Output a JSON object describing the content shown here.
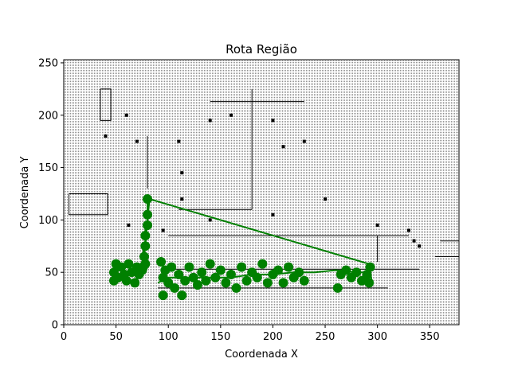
{
  "chart_data": {
    "type": "scatter",
    "title": "Rota Região",
    "xlabel": "Coordenada X",
    "ylabel": "Coordenada Y",
    "xlim": [
      0,
      378
    ],
    "ylim": [
      0,
      253
    ],
    "x_ticks": [
      0,
      50,
      100,
      150,
      200,
      250,
      300,
      350
    ],
    "y_ticks": [
      0,
      50,
      100,
      150,
      200,
      250
    ],
    "x_tick_labels": [
      "0",
      "50",
      "100",
      "150",
      "200",
      "250",
      "300",
      "350"
    ],
    "y_tick_labels": [
      "0",
      "50",
      "100",
      "150",
      "200",
      "250"
    ],
    "background": "grid map of occupied cells (black dots)",
    "series": [
      {
        "kind": "line",
        "color": "#008000",
        "x": [
          80,
          80,
          78,
          78,
          76,
          76,
          82,
          292,
          294,
          290,
          280,
          260,
          240,
          220,
          200,
          180,
          160,
          140,
          120,
          100,
          90
        ],
        "y": [
          120,
          100,
          92,
          80,
          70,
          55,
          120,
          58,
          45,
          50,
          50,
          52,
          50,
          50,
          48,
          48,
          45,
          45,
          45,
          45,
          40
        ]
      },
      {
        "kind": "markers",
        "color": "#008000",
        "x": [
          48,
          48,
          50,
          52,
          55,
          58,
          60,
          62,
          65,
          68,
          70,
          72,
          75,
          78,
          80,
          80,
          80,
          78,
          78,
          77,
          76,
          93,
          95,
          95,
          97,
          100,
          103,
          106,
          110,
          113,
          116,
          120,
          124,
          128,
          132,
          136,
          140,
          145,
          150,
          155,
          160,
          165,
          170,
          175,
          180,
          185,
          190,
          195,
          200,
          205,
          210,
          215,
          220,
          225,
          230,
          262,
          265,
          270,
          275,
          280,
          285,
          290,
          292,
          293
        ],
        "y": [
          42,
          50,
          58,
          45,
          55,
          48,
          42,
          58,
          50,
          40,
          55,
          48,
          52,
          58,
          120,
          105,
          95,
          85,
          75,
          65,
          55,
          60,
          45,
          28,
          52,
          40,
          55,
          35,
          48,
          28,
          42,
          55,
          45,
          38,
          50,
          42,
          58,
          45,
          52,
          40,
          48,
          35,
          55,
          42,
          50,
          45,
          58,
          40,
          48,
          52,
          40,
          55,
          45,
          50,
          42,
          35,
          48,
          52,
          45,
          50,
          42,
          48,
          40,
          55
        ]
      }
    ]
  }
}
